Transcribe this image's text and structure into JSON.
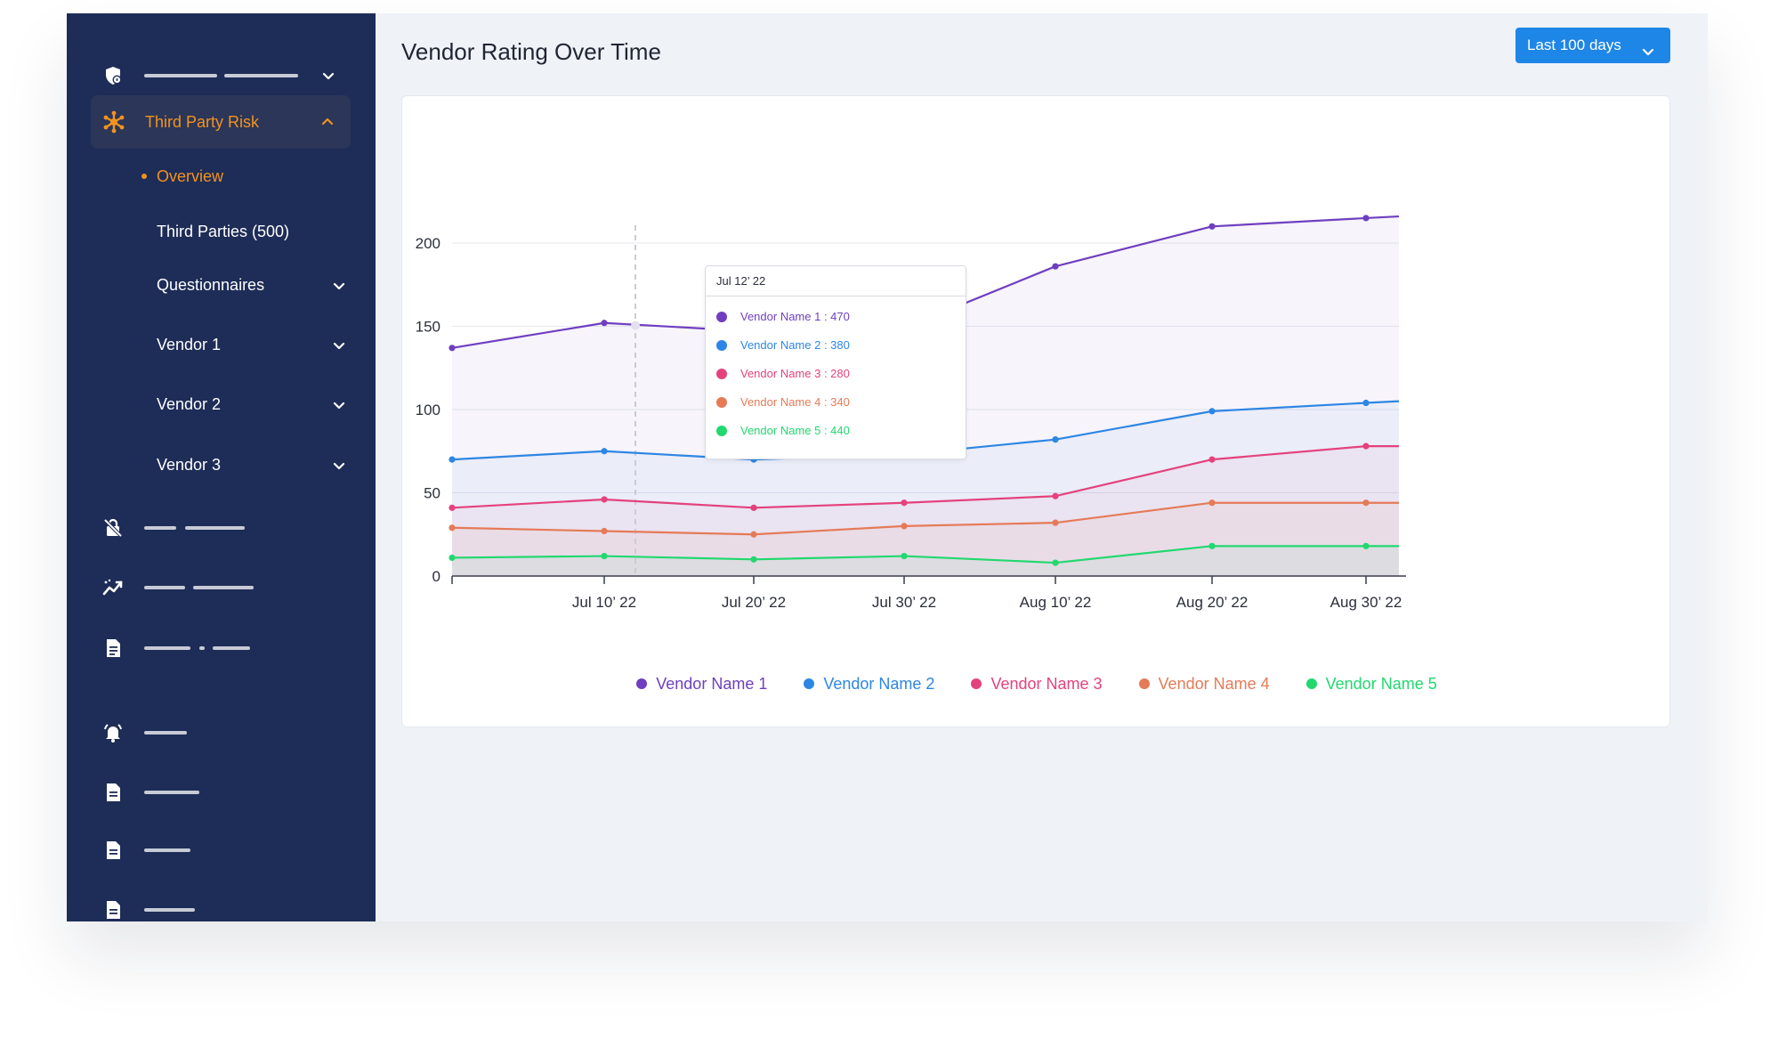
{
  "sidebar": {
    "active_section": "Third Party Risk",
    "sub_items": [
      "Overview",
      "Third Parties (500)",
      "Questionnaires",
      "Vendor 1",
      "Vendor 2",
      "Vendor 3"
    ],
    "icons": [
      "shield-lock-icon",
      "network-icon",
      "lock-off-icon",
      "trend-icon",
      "document-icon",
      "bell-alert-icon",
      "file-icon",
      "file-icon",
      "file-icon"
    ]
  },
  "header": {
    "title": "Vendor Rating Over Time",
    "range_button": "Last 100 days"
  },
  "tooltip": {
    "title": "Jul 12’ 22",
    "rows": [
      "Vendor Name 1 : 470",
      "Vendor Name 2 : 380",
      "Vendor Name 3 : 280",
      "Vendor Name 4 : 340",
      "Vendor Name 5 : 440"
    ]
  },
  "chart_data": {
    "type": "area",
    "title": "",
    "xlabel": "",
    "ylabel": "",
    "ylim": [
      0,
      200
    ],
    "yticks": [
      0,
      50,
      100,
      150,
      200
    ],
    "x_tick_labels": [
      "Jul 10’ 22",
      "Jul 20’ 22",
      "Jul 30’ 22",
      "Aug 10’ 22",
      "Aug 20’ 22",
      "Aug 30’ 22"
    ],
    "x": [
      "Jun 30’ 22",
      "Jul 10’ 22",
      "Jul 20’ 22",
      "Jul 30’ 22",
      "Aug 10’ 22",
      "Aug 20’ 22",
      "Aug 30’ 22",
      "Aug 31’ 22"
    ],
    "hover_date": "Jul 12’ 22",
    "grid": true,
    "legend_position": "bottom-center",
    "series": [
      {
        "name": "Vendor Name 1",
        "color": "#6f3fc0",
        "values": [
          137,
          152,
          147,
          149,
          186,
          210,
          215,
          216
        ]
      },
      {
        "name": "Vendor Name 2",
        "color": "#2d86e3",
        "values": [
          70,
          75,
          70,
          73,
          82,
          99,
          104,
          105
        ]
      },
      {
        "name": "Vendor Name 3",
        "color": "#e4427d",
        "values": [
          41,
          46,
          41,
          44,
          48,
          70,
          78,
          78
        ]
      },
      {
        "name": "Vendor Name 4",
        "color": "#e57a57",
        "values": [
          29,
          27,
          25,
          30,
          32,
          44,
          44,
          44
        ]
      },
      {
        "name": "Vendor Name 5",
        "color": "#22d86f",
        "values": [
          11,
          12,
          10,
          12,
          8,
          18,
          18,
          18
        ]
      }
    ]
  }
}
